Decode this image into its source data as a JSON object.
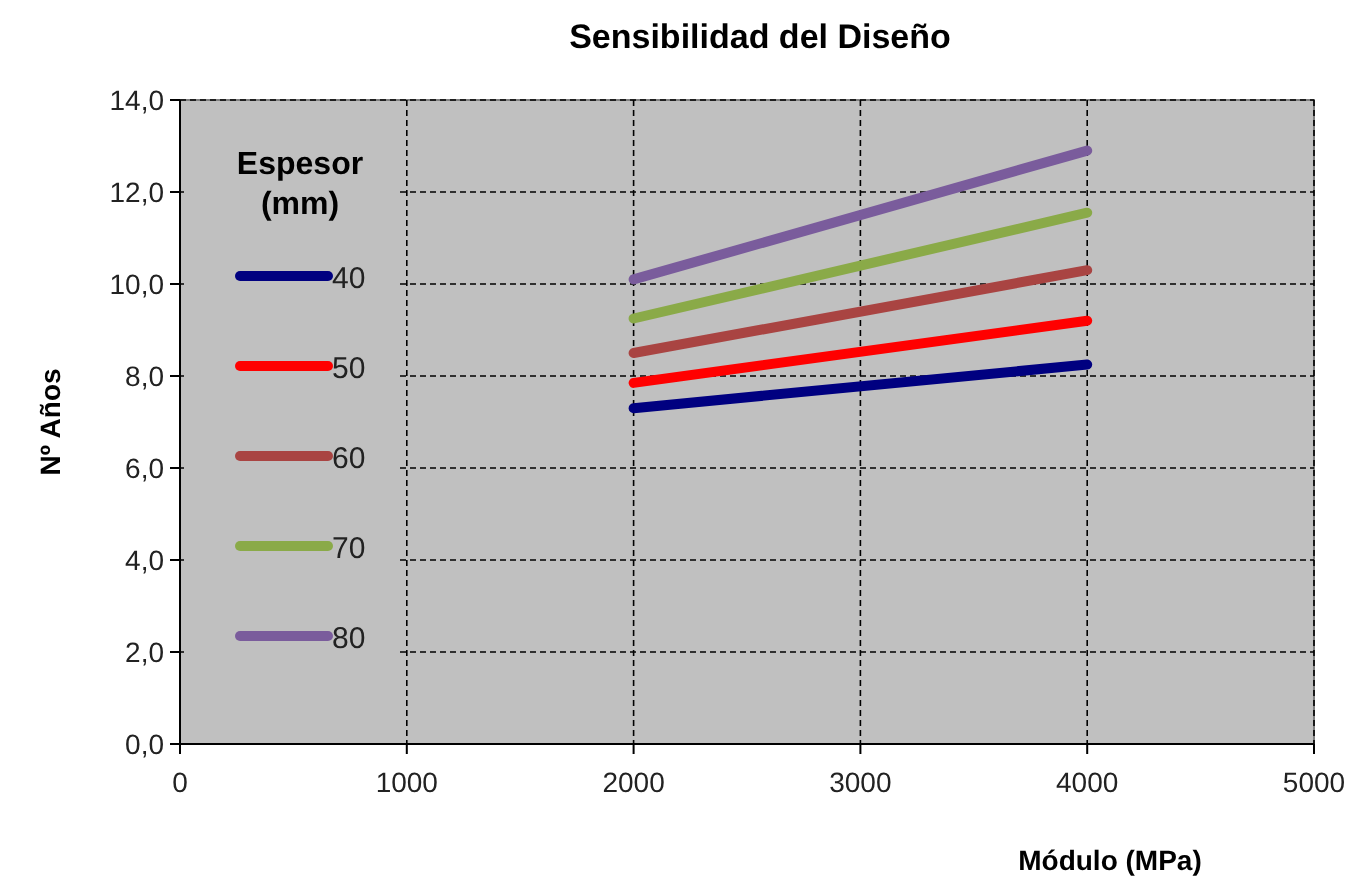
{
  "chart_data": {
    "type": "line",
    "title": "Sensibilidad del Diseño",
    "xlabel": "Módulo  (MPa)",
    "ylabel": "Nº Años",
    "legend_title": "Espesor (mm)",
    "legend": "left",
    "grid": true,
    "x": [
      2000,
      4000
    ],
    "series": [
      {
        "name": "40",
        "color": "#000080",
        "values": [
          7.3,
          8.25
        ]
      },
      {
        "name": "50",
        "color": "#ff0000",
        "values": [
          7.85,
          9.2
        ]
      },
      {
        "name": "60",
        "color": "#a94442",
        "values": [
          8.5,
          10.3
        ]
      },
      {
        "name": "70",
        "color": "#8aaa48",
        "values": [
          9.25,
          11.55
        ]
      },
      {
        "name": "80",
        "color": "#7a5c9c",
        "values": [
          10.1,
          12.9
        ]
      }
    ],
    "xlim": [
      0,
      5000
    ],
    "xticks": [
      0,
      1000,
      2000,
      3000,
      4000,
      5000
    ],
    "ylim": [
      0,
      14
    ],
    "yticks": [
      {
        "value": 0,
        "label": "0,0"
      },
      {
        "value": 2,
        "label": "2,0"
      },
      {
        "value": 4,
        "label": "4,0"
      },
      {
        "value": 6,
        "label": "6,0"
      },
      {
        "value": 8,
        "label": "8,0"
      },
      {
        "value": 10,
        "label": "10,0"
      },
      {
        "value": 12,
        "label": "12,0"
      },
      {
        "value": 14,
        "label": "14,0"
      }
    ]
  }
}
